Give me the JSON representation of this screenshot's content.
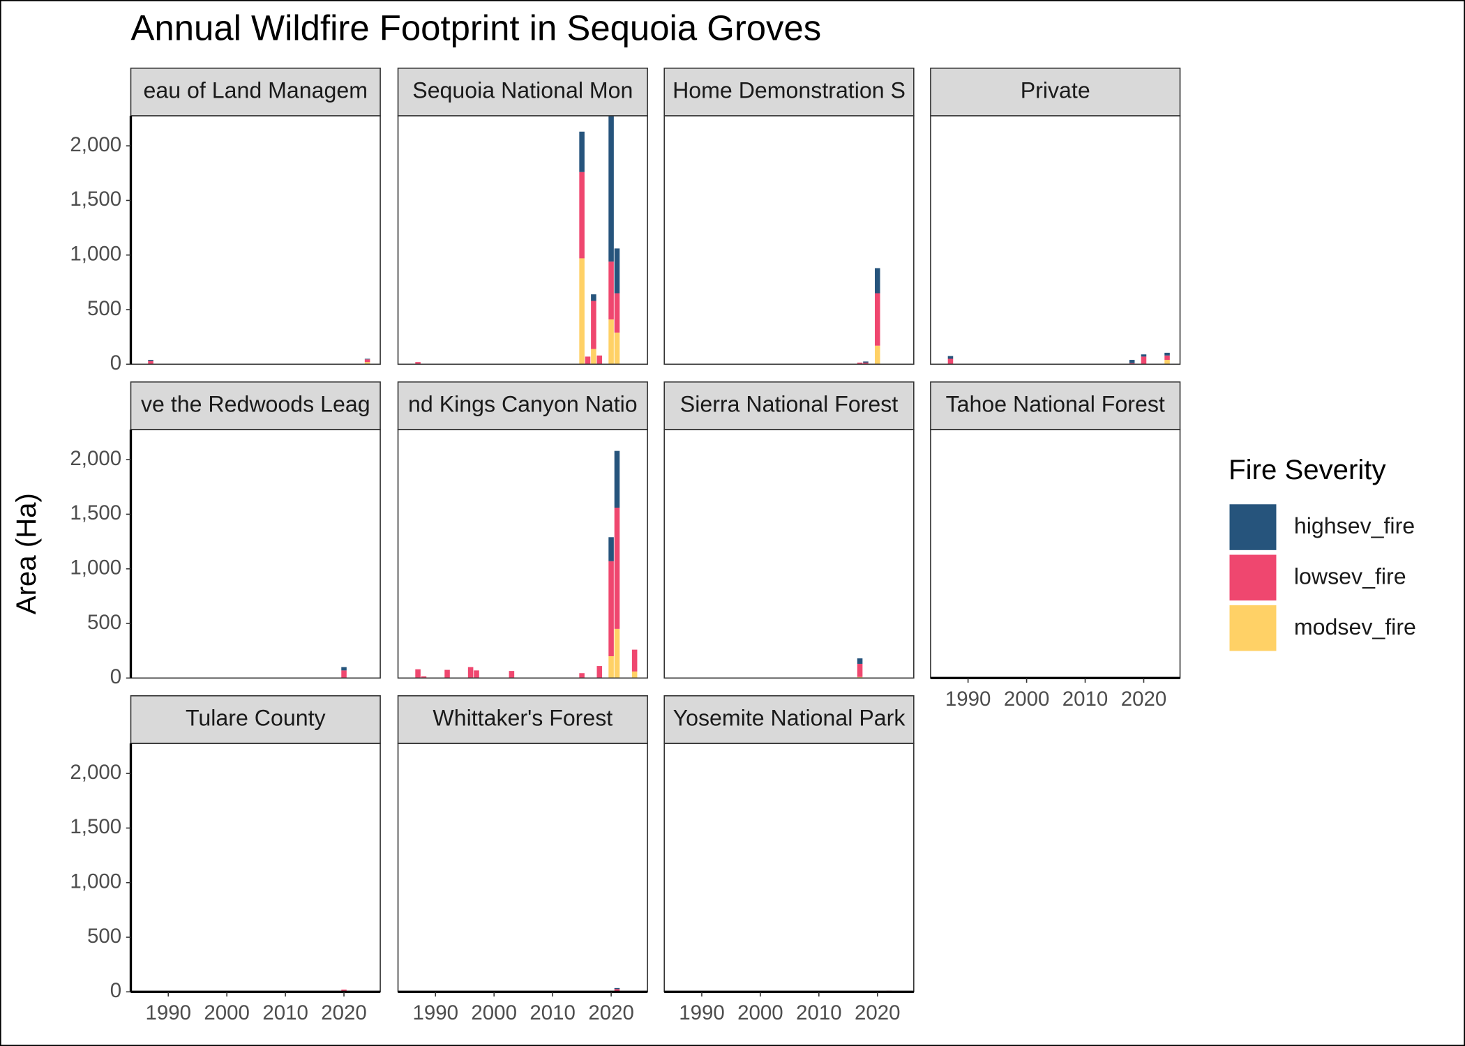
{
  "chart_data": {
    "type": "bar",
    "title": "Annual Wildfire Footprint in Sequoia Groves",
    "y_label": "Area (Ha)",
    "legend_title": "Fire Severity",
    "stacked": true,
    "series": [
      {
        "name": "highsev_fire",
        "color": "#26547c"
      },
      {
        "name": "lowsev_fire",
        "color": "#ef476f"
      },
      {
        "name": "modsev_fire",
        "color": "#ffd166"
      }
    ],
    "xlim": [
      1983.6,
      2026.2
    ],
    "xticks": [
      1990,
      2000,
      2010,
      2020
    ],
    "ylim": [
      0,
      2275
    ],
    "yticks": [
      0,
      500,
      {
        "value": 1000,
        "label": "1,000"
      },
      {
        "value": 1500,
        "label": "1,500"
      },
      {
        "value": 2000,
        "label": "2,000"
      }
    ],
    "facets": [
      {
        "title": "eau of Land Managem",
        "x": [
          1987,
          2024
        ],
        "series": [
          [
            10,
            5
          ],
          [
            30,
            25
          ],
          [
            0,
            20
          ]
        ]
      },
      {
        "title": "Sequoia National Mon",
        "x": [
          1987,
          2015,
          2016,
          2017,
          2018,
          2020,
          2021
        ],
        "series": [
          [
            0,
            370,
            0,
            60,
            0,
            1330,
            410
          ],
          [
            20,
            790,
            70,
            440,
            80,
            530,
            360
          ],
          [
            0,
            970,
            0,
            140,
            0,
            410,
            290
          ]
        ]
      },
      {
        "title": "Home Demonstration S",
        "x": [
          2017,
          2018,
          2020
        ],
        "series": [
          [
            0,
            10,
            230
          ],
          [
            15,
            15,
            480
          ],
          [
            0,
            0,
            170
          ]
        ]
      },
      {
        "title": "Private",
        "x": [
          1987,
          2018,
          2020,
          2024
        ],
        "series": [
          [
            25,
            30,
            20,
            25
          ],
          [
            50,
            10,
            70,
            40
          ],
          [
            0,
            0,
            0,
            40
          ]
        ]
      },
      {
        "title": "ve the Redwoods Leag",
        "x": [
          2020
        ],
        "series": [
          [
            30
          ],
          [
            70
          ],
          [
            0
          ]
        ]
      },
      {
        "title": "nd Kings Canyon Natio",
        "x": [
          1987,
          1988,
          1992,
          1996,
          1997,
          2003,
          2015,
          2018,
          2020,
          2021,
          2024
        ],
        "series": [
          [
            0,
            0,
            0,
            0,
            0,
            0,
            0,
            0,
            220,
            520,
            0
          ],
          [
            80,
            15,
            75,
            100,
            70,
            65,
            45,
            110,
            870,
            1110,
            200
          ],
          [
            0,
            0,
            0,
            0,
            0,
            0,
            0,
            0,
            200,
            450,
            60
          ]
        ]
      },
      {
        "title": "Sierra National Forest",
        "x": [
          2017
        ],
        "series": [
          [
            50
          ],
          [
            120
          ],
          [
            10
          ]
        ]
      },
      {
        "title": "Tahoe National Forest",
        "x": [],
        "series": [
          [],
          [],
          []
        ]
      },
      {
        "title": "Tulare County",
        "x": [
          2020
        ],
        "series": [
          [
            0
          ],
          [
            20
          ],
          [
            0
          ]
        ]
      },
      {
        "title": "Whittaker's Forest",
        "x": [
          2021
        ],
        "series": [
          [
            10
          ],
          [
            25
          ],
          [
            0
          ]
        ]
      },
      {
        "title": "Yosemite National Park",
        "x": [
          2022
        ],
        "series": [
          [
            0
          ],
          [
            10
          ],
          [
            0
          ]
        ]
      }
    ]
  }
}
